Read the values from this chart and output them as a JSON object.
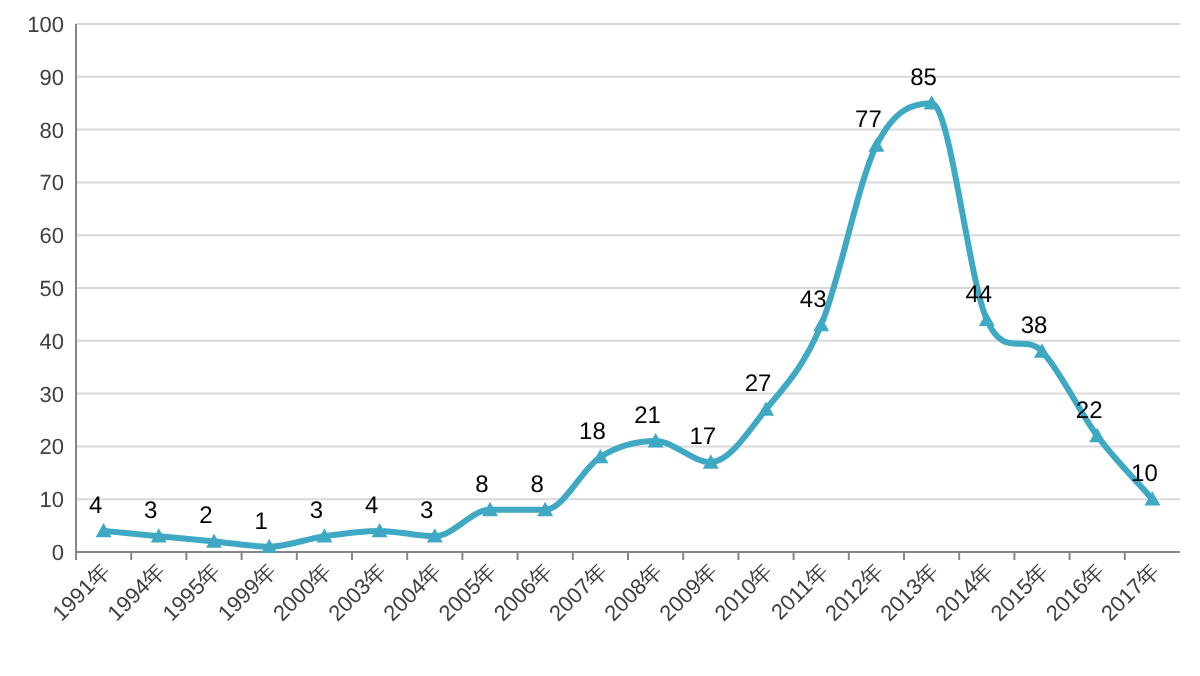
{
  "chart_data": {
    "type": "line",
    "categories": [
      "1991年",
      "1994年",
      "1995年",
      "1999年",
      "2000年",
      "2003年",
      "2004年",
      "2005年",
      "2006年",
      "2007年",
      "2008年",
      "2009年",
      "2010年",
      "2011年",
      "2012年",
      "2013年",
      "2014年",
      "2015年",
      "2016年",
      "2017年"
    ],
    "series": [
      {
        "color": "#3fa9c4",
        "values": [
          4,
          3,
          2,
          1,
          3,
          4,
          3,
          8,
          8,
          18,
          21,
          17,
          27,
          43,
          77,
          85,
          44,
          38,
          22,
          10
        ]
      }
    ],
    "ylim": [
      0,
      100
    ],
    "yticks": [
      0,
      10,
      20,
      30,
      40,
      50,
      60,
      70,
      80,
      90,
      100
    ],
    "grid": "y",
    "marker": "triangle",
    "line_style": "solid",
    "data_labels": true
  }
}
